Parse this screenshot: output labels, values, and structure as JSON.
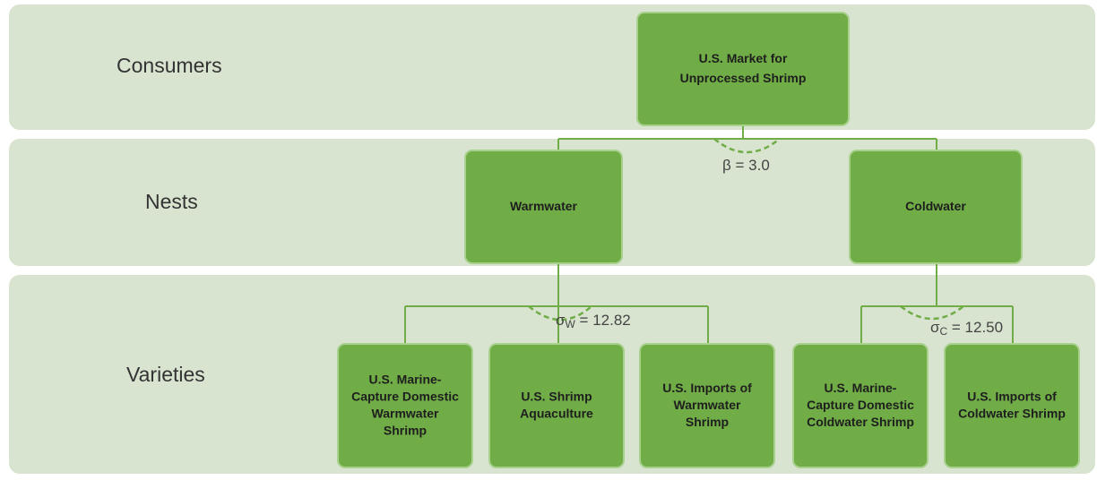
{
  "bands": [
    {
      "label": "Consumers"
    },
    {
      "label": "Nests"
    },
    {
      "label": "Varieties"
    }
  ],
  "nodes": [
    {
      "lines": [
        "U.S. Market for",
        "Unprocessed Shrimp"
      ]
    },
    {
      "lines": [
        "Warmwater"
      ]
    },
    {
      "lines": [
        "Coldwater"
      ]
    },
    {
      "lines": [
        "U.S. Marine-",
        "Capture Domestic",
        "Warmwater",
        "Shrimp"
      ]
    },
    {
      "lines": [
        "U.S. Shrimp",
        "Aquaculture"
      ]
    },
    {
      "lines": [
        "U.S. Imports of",
        "Warmwater",
        "Shrimp"
      ]
    },
    {
      "lines": [
        "U.S. Marine-",
        "Capture Domestic",
        "Coldwater Shrimp"
      ]
    },
    {
      "lines": [
        "U.S. Imports of",
        "Coldwater Shrimp"
      ]
    }
  ],
  "parameters": [
    {
      "symbol": "β",
      "rest": " = 3.0"
    },
    {
      "symbol": "σ",
      "subscript": "W",
      "rest": " = 12.82"
    },
    {
      "symbol": "σ",
      "subscript": "C",
      "rest": " = 12.50"
    }
  ]
}
